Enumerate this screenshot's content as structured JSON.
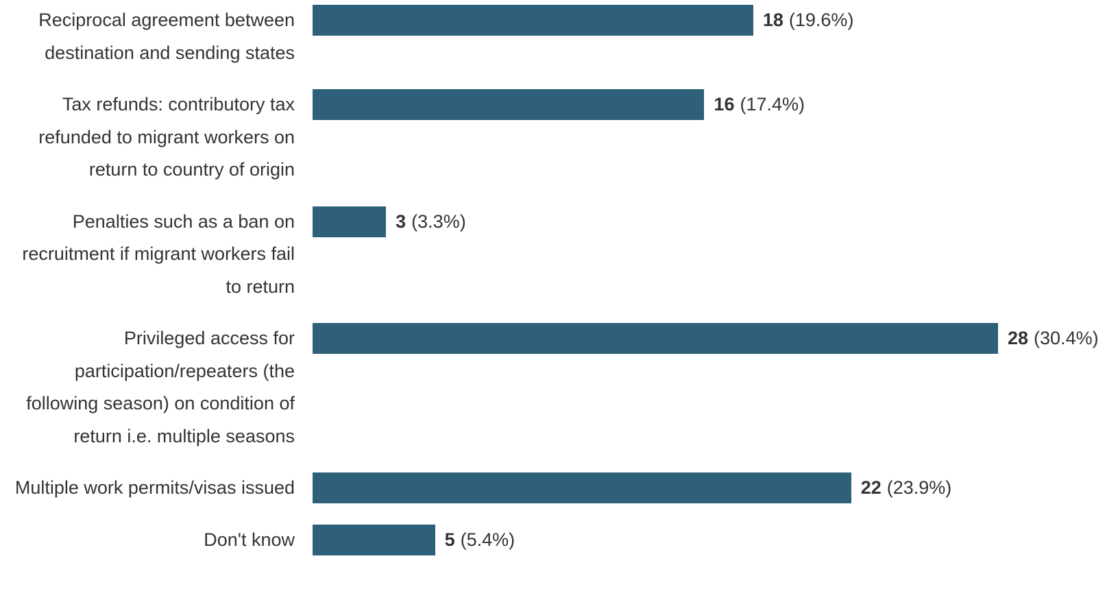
{
  "chart_data": {
    "type": "bar",
    "orientation": "horizontal",
    "categories": [
      "Reciprocal agreement between destination and sending states",
      "Tax refunds: contributory tax refunded to migrant workers on return to country of origin",
      "Penalties such as a ban on recruitment if migrant workers fail to return",
      "Privileged access for participation/repeaters (the following season) on condition of return i.e. multiple seasons",
      "Multiple work permits/visas issued",
      "Don't know"
    ],
    "values": [
      18,
      16,
      3,
      28,
      22,
      5
    ],
    "shares": [
      19.6,
      17.4,
      3.3,
      30.4,
      23.9,
      5.4
    ],
    "share_labels": [
      "(19.6%)",
      "(17.4%)",
      "(3.3%)",
      "(30.4%)",
      "(23.9%)",
      "(5.4%)"
    ],
    "color": "#2e6079",
    "xlim": [
      0,
      28
    ]
  }
}
